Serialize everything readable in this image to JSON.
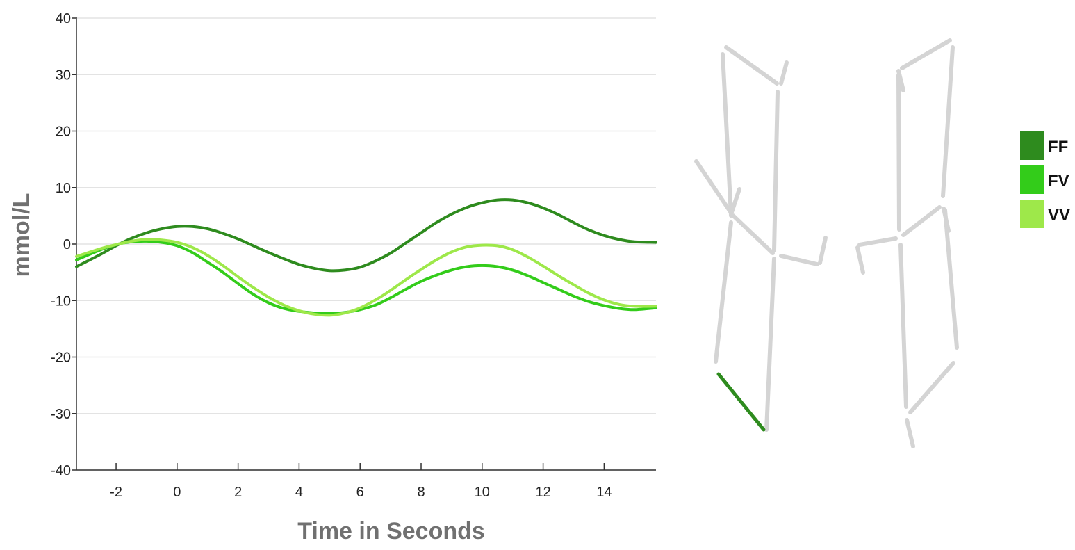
{
  "chart_data": {
    "type": "line",
    "title": "",
    "xlabel": "Time in Seconds",
    "ylabel": "mmol/L",
    "xlim": [
      -3.3,
      15.7
    ],
    "ylim": [
      -40,
      40
    ],
    "xticks": [
      -2,
      0,
      2,
      4,
      6,
      8,
      10,
      12,
      14
    ],
    "xtick_labels": [
      "-2",
      "0",
      "2",
      "4",
      "6",
      "8",
      "10",
      "12",
      "14"
    ],
    "yticks": [
      40,
      30,
      20,
      10,
      0,
      -10,
      -20,
      -30,
      -40
    ],
    "ytick_labels": [
      "40",
      "30",
      "20",
      "10",
      "0",
      "-10",
      "-20",
      "-30",
      "-40"
    ],
    "grid": "horizontal",
    "legend_position": "right",
    "series": [
      {
        "name": "FF",
        "color": "#2e8b1e",
        "x": [
          -3.3,
          -2.5,
          -2,
          -1.5,
          -1,
          -0.5,
          0,
          0.5,
          1,
          1.5,
          2,
          2.5,
          3,
          3.5,
          4,
          4.5,
          5,
          5.5,
          6,
          6.5,
          7,
          7.5,
          8,
          8.5,
          9,
          9.5,
          10,
          10.5,
          11,
          11.5,
          12,
          12.5,
          13,
          13.5,
          14,
          14.5,
          15,
          15.7
        ],
        "y": [
          -4,
          -1.8,
          -0.3,
          1.0,
          2.0,
          2.7,
          3.1,
          3.1,
          2.7,
          1.9,
          0.9,
          -0.3,
          -1.5,
          -2.6,
          -3.6,
          -4.3,
          -4.7,
          -4.6,
          -4.1,
          -3.0,
          -1.6,
          0.2,
          2.0,
          3.8,
          5.3,
          6.5,
          7.3,
          7.8,
          7.8,
          7.3,
          6.4,
          5.2,
          3.8,
          2.5,
          1.5,
          0.8,
          0.4,
          0.3
        ]
      },
      {
        "name": "FV",
        "color": "#33cc1a",
        "x": [
          -3.3,
          -2.5,
          -2,
          -1.5,
          -1,
          -0.5,
          0,
          0.5,
          1,
          1.5,
          2,
          2.5,
          3,
          3.5,
          4,
          4.5,
          5,
          5.5,
          6,
          6.5,
          7,
          7.5,
          8,
          8.5,
          9,
          9.5,
          10,
          10.5,
          11,
          11.5,
          12,
          12.5,
          13,
          13.5,
          14,
          14.5,
          15,
          15.7
        ],
        "y": [
          -2.8,
          -1.0,
          -0.1,
          0.4,
          0.5,
          0.3,
          -0.3,
          -1.5,
          -3.2,
          -5.0,
          -7.0,
          -8.9,
          -10.4,
          -11.4,
          -11.9,
          -12.2,
          -12.3,
          -12.1,
          -11.6,
          -10.8,
          -9.5,
          -8.0,
          -6.6,
          -5.5,
          -4.6,
          -4.0,
          -3.8,
          -4.0,
          -4.6,
          -5.6,
          -6.8,
          -8.0,
          -9.2,
          -10.2,
          -10.9,
          -11.4,
          -11.6,
          -11.3
        ]
      },
      {
        "name": "VV",
        "color": "#9ee84a",
        "x": [
          -3.3,
          -2.5,
          -2,
          -1.5,
          -1,
          -0.5,
          0,
          0.5,
          1,
          1.5,
          2,
          2.5,
          3,
          3.5,
          4,
          4.5,
          5,
          5.5,
          6,
          6.5,
          7,
          7.5,
          8,
          8.5,
          9,
          9.5,
          10,
          10.5,
          11,
          11.5,
          12,
          12.5,
          13,
          13.5,
          14,
          14.5,
          15,
          15.7
        ],
        "y": [
          -2.2,
          -0.8,
          -0.1,
          0.5,
          0.8,
          0.7,
          0.3,
          -0.6,
          -2.0,
          -3.8,
          -5.8,
          -7.7,
          -9.4,
          -10.8,
          -11.8,
          -12.4,
          -12.6,
          -12.2,
          -11.3,
          -9.9,
          -8.2,
          -6.3,
          -4.5,
          -2.8,
          -1.4,
          -0.5,
          -0.2,
          -0.3,
          -1.0,
          -2.3,
          -3.9,
          -5.6,
          -7.2,
          -8.7,
          -9.9,
          -10.7,
          -11.0,
          -11.0
        ]
      }
    ]
  },
  "figure_diagram": {
    "segment_color": "#d4d4d4",
    "highlight_color": "#2e8b1e"
  }
}
